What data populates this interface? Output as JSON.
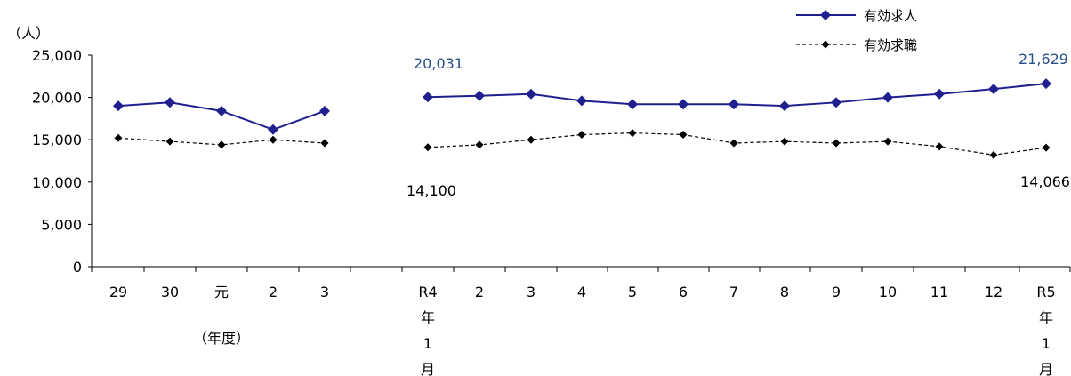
{
  "chart_data": {
    "type": "line",
    "unit_label": "（人）",
    "y_ticks": [
      "25,000",
      "20,000",
      "15,000",
      "10,000",
      "5,000",
      "0"
    ],
    "ylim": [
      0,
      25000
    ],
    "grid": false,
    "legend_position": "top-right",
    "annual": {
      "categories": [
        "29",
        "30",
        "元",
        "2",
        "3"
      ],
      "caption": "（年度）",
      "series": [
        {
          "name": "有効求人",
          "values": [
            19000,
            19400,
            18400,
            16200,
            18400
          ]
        },
        {
          "name": "有効求職",
          "values": [
            15200,
            14800,
            14400,
            15000,
            14600
          ]
        }
      ]
    },
    "monthly": {
      "categories": [
        "R4年1月",
        "2",
        "3",
        "4",
        "5",
        "6",
        "7",
        "8",
        "9",
        "10",
        "11",
        "12",
        "R5年1月"
      ],
      "series": [
        {
          "name": "有効求人",
          "values": [
            20031,
            20200,
            20400,
            19600,
            19200,
            19200,
            19200,
            19000,
            19400,
            20000,
            20400,
            21000,
            21629
          ]
        },
        {
          "name": "有効求職",
          "values": [
            14100,
            14400,
            15000,
            15600,
            15800,
            15600,
            14600,
            14800,
            14600,
            14800,
            14200,
            13200,
            14066
          ]
        }
      ]
    },
    "data_labels": [
      {
        "text": "20,031",
        "series": "有効求人",
        "point": "R4年1月"
      },
      {
        "text": "21,629",
        "series": "有効求人",
        "point": "R5年1月"
      },
      {
        "text": "14,100",
        "series": "有効求職",
        "point": "R4年1月"
      },
      {
        "text": "14,066",
        "series": "有効求職",
        "point": "R5年1月"
      }
    ],
    "legend": [
      {
        "name": "有効求人",
        "style": "solid",
        "color": "#1f1f8f"
      },
      {
        "name": "有効求職",
        "style": "dashed",
        "color": "#000000"
      }
    ],
    "colors": {
      "jobs": "#1f1f8f",
      "seekers": "#000000",
      "label_blue": "#2a4f8a"
    }
  }
}
